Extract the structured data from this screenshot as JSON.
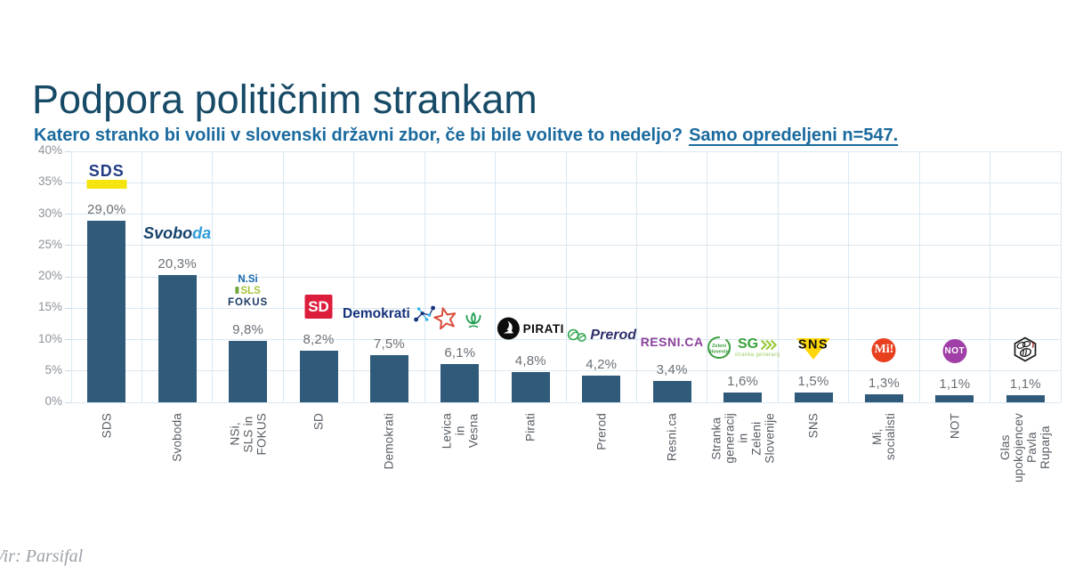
{
  "header": {
    "title": "Podpora političnim strankam",
    "subtitle": "Katero stranko bi volili v slovenski državni zbor, če bi bile volitve to nedeljo?",
    "subtitle_underlined": "Samo opredeljeni n=547."
  },
  "footer": {
    "source": "Vir: Parsifal"
  },
  "colors": {
    "bar": "#2F5A7A",
    "grid": "#DAE8F1",
    "title": "#174A66",
    "subtitle": "#1A6A9E",
    "axis_labels": "#8D949C",
    "value_labels": "#6A7076"
  },
  "chart_data": {
    "type": "bar",
    "title": "Podpora političnim strankam",
    "subtitle": "Katero stranko bi volili v slovenski državni zbor, če bi bile volitve to nedeljo? Samo opredeljeni n=547.",
    "categories": [
      "SDS",
      "Svoboda",
      "NSi, SLS in FOKUS",
      "SD",
      "Demokrati",
      "Levica in Vesna",
      "Pirati",
      "Prerod",
      "Resni.ca",
      "Stranka generacij in Zeleni Slovenije",
      "SNS",
      "Mi, socialisti",
      "NOT",
      "Glas upokojencev Pavla Ruparja"
    ],
    "values": [
      29.0,
      20.3,
      9.8,
      8.2,
      7.5,
      6.1,
      4.8,
      4.2,
      3.4,
      1.6,
      1.5,
      1.3,
      1.1,
      1.1
    ],
    "value_labels": [
      "29,0%",
      "20,3%",
      "9,8%",
      "8,2%",
      "7,5%",
      "6,1%",
      "4,8%",
      "4,2%",
      "3,4%",
      "1,6%",
      "1,5%",
      "1,3%",
      "1,1%",
      "1,1%"
    ],
    "xlabel": "",
    "ylabel": "",
    "ylim": [
      0,
      40
    ],
    "ytick_step": 5,
    "ytick_labels": [
      "0%",
      "5%",
      "10%",
      "15%",
      "20%",
      "25%",
      "30%",
      "35%",
      "40%"
    ],
    "grid": true,
    "legend": false,
    "bar_color": "#2F5A7A"
  },
  "bars": [
    {
      "category_lines": [
        "SDS"
      ],
      "logo": {
        "type": "sds",
        "name": "sds-logo",
        "text": "SDS",
        "colors": {
          "blue": "#223C82",
          "yellow": "#F6E40F"
        }
      }
    },
    {
      "category_lines": [
        "Svoboda"
      ],
      "logo": {
        "type": "svoboda",
        "name": "svoboda-logo",
        "text_dark": "Svobo",
        "text_light": "da",
        "colors": {
          "dark": "#16426B",
          "light": "#2F9CD8"
        }
      }
    },
    {
      "category_lines": [
        "NSi, SLS in FOKUS"
      ],
      "logo": {
        "type": "nsi",
        "name": "nsi-sls-fokus-logo",
        "line1": "N.Si",
        "line2": "SLS",
        "line3": "FOKUS",
        "colors": {
          "nsi": "#1567AE",
          "sls": "#A6C53D",
          "fokus": "#1C3B63"
        }
      }
    },
    {
      "category_lines": [
        "SD"
      ],
      "logo": {
        "type": "sd",
        "name": "sd-logo",
        "text": "SD",
        "colors": {
          "red": "#DC1D3C"
        }
      }
    },
    {
      "category_lines": [
        "Demokrati"
      ],
      "logo": {
        "type": "demokrati",
        "name": "demokrati-logo",
        "text": "Demokrati",
        "colors": {
          "navy": "#15337B",
          "lightblue": "#35B4E5"
        }
      }
    },
    {
      "category_lines": [
        "Levica in Vesna"
      ],
      "logo": {
        "type": "levica",
        "name": "levica-vesna-logo",
        "colors": {
          "star_red": "#D84C3B",
          "tulip_green": "#1E9E50"
        }
      }
    },
    {
      "category_lines": [
        "Pirati"
      ],
      "logo": {
        "type": "pirati",
        "name": "pirati-logo",
        "text": "PIRATI",
        "colors": {
          "black": "#0D0D0D"
        }
      }
    },
    {
      "category_lines": [
        "Prerod"
      ],
      "logo": {
        "type": "prerod",
        "name": "prerod-logo",
        "text": "Prerod",
        "colors": {
          "green": "#2FA54C",
          "navy": "#2D2F6B"
        }
      }
    },
    {
      "category_lines": [
        "Resni.ca"
      ],
      "logo": {
        "type": "resnica",
        "name": "resnica-logo",
        "text": "RESNI.CA",
        "colors": {
          "purple": "#8C429C"
        }
      }
    },
    {
      "category_lines": [
        "Stranka generacij in",
        "Zeleni Slovenije"
      ],
      "logo": {
        "type": "zeleni",
        "name": "zeleni-sg-logo",
        "circle_line1": "Zeleni",
        "circle_line2": "Slovenije",
        "sg": "SG",
        "sub": "stranka generacij",
        "colors": {
          "green": "#3C9E3F",
          "chevron": "#9ACA3C"
        }
      }
    },
    {
      "category_lines": [
        "SNS"
      ],
      "logo": {
        "type": "sns",
        "name": "sns-logo",
        "text": "SNS",
        "colors": {
          "yellow": "#FFD60A",
          "black": "#0D0D0D"
        }
      }
    },
    {
      "category_lines": [
        "Mi, socialisti"
      ],
      "logo": {
        "type": "mi",
        "name": "mi-socialisti-logo",
        "text": "Mi!",
        "colors": {
          "red": "#E8401F"
        }
      }
    },
    {
      "category_lines": [
        "NOT"
      ],
      "logo": {
        "type": "not",
        "name": "not-logo",
        "text": "NOT",
        "colors": {
          "purple": "#A03FA8"
        }
      }
    },
    {
      "category_lines": [
        "Glas upokojencev",
        "Pavla Ruparja"
      ],
      "logo": {
        "type": "glas",
        "name": "glas-upokojencev-logo",
        "colors": {
          "black": "#1B1B1B",
          "red": "#B03A3A"
        }
      }
    }
  ]
}
